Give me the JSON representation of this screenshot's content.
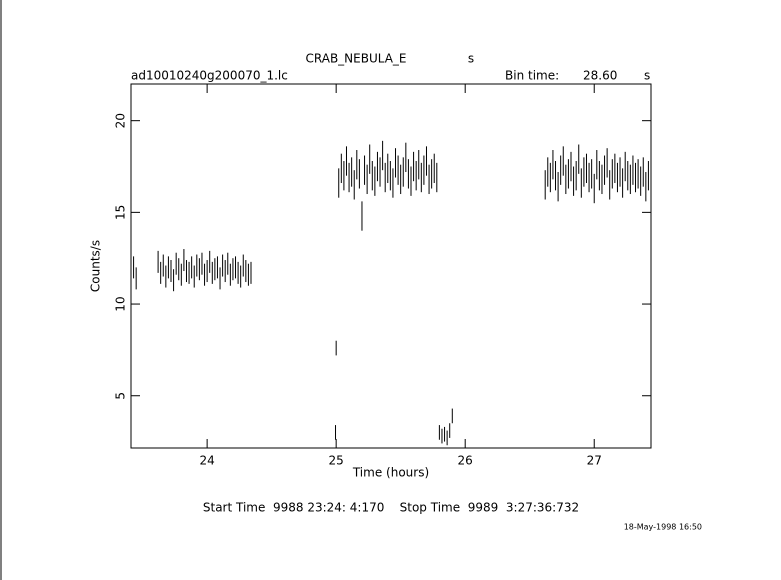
{
  "chart_data": {
    "type": "errorbar",
    "title": "CRAB_NEBULA_E",
    "title_suffix": "s",
    "file_name": "ad10010240g200070_1.lc",
    "bin_time_label": "Bin time:",
    "bin_time": "28.60",
    "bin_time_unit": "s",
    "xlabel": "Time (hours)",
    "ylabel": "Counts/s",
    "footer": "Start Time  9988 23:24: 4:170    Stop Time  9989  3:27:36:732",
    "date": "18-May-1998 16:50",
    "xlim": [
      23.41,
      27.44
    ],
    "ylim": [
      2.15,
      22
    ],
    "xticks": [
      24,
      25,
      26,
      27
    ],
    "yticks": [
      5,
      10,
      15,
      20
    ],
    "series": [
      {
        "color": "#000000",
        "error": 0.6,
        "x": [
          23.41,
          23.43,
          23.45
        ],
        "values": [
          11.6,
          12.0,
          11.4
        ]
      },
      {
        "color": "#000000",
        "error": 0.6,
        "x": [
          23.62,
          23.64,
          23.66,
          23.68,
          23.7,
          23.72,
          23.74,
          23.76,
          23.78,
          23.8,
          23.82,
          23.84,
          23.86,
          23.88,
          23.9,
          23.92,
          23.94,
          23.96,
          23.98,
          24.0,
          24.02,
          24.04,
          24.06,
          24.08,
          24.1,
          24.12,
          24.14,
          24.16,
          24.18,
          24.2,
          24.22,
          24.24,
          24.26,
          24.28,
          24.3,
          24.32,
          24.34
        ],
        "values": [
          12.3,
          11.7,
          12.1,
          11.5,
          12.0,
          11.8,
          11.3,
          12.2,
          11.9,
          11.6,
          12.4,
          11.8,
          11.7,
          12.0,
          11.5,
          12.1,
          11.9,
          12.2,
          11.6,
          11.8,
          12.3,
          11.7,
          11.9,
          12.0,
          11.4,
          12.1,
          11.8,
          12.2,
          11.6,
          11.9,
          12.0,
          11.7,
          11.5,
          12.1,
          11.8,
          11.6,
          11.7
        ]
      },
      {
        "color": "#000000",
        "error": 0.4,
        "x": [
          24.995,
          25.0
        ],
        "values": [
          3.0,
          7.6
        ]
      },
      {
        "color": "#000000",
        "error": 0.8,
        "x": [
          25.02,
          25.04,
          25.06,
          25.08,
          25.1,
          25.12,
          25.14,
          25.16,
          25.18,
          25.2,
          25.22,
          25.24,
          25.26,
          25.28,
          25.3,
          25.32,
          25.34,
          25.36,
          25.38,
          25.4,
          25.42,
          25.44,
          25.46,
          25.48,
          25.5,
          25.52,
          25.54,
          25.56,
          25.58,
          25.6,
          25.62,
          25.64,
          25.66,
          25.68,
          25.7,
          25.72,
          25.74,
          25.76,
          25.78
        ],
        "values": [
          16.6,
          17.4,
          17.0,
          17.8,
          16.9,
          17.2,
          16.5,
          17.6,
          17.1,
          14.8,
          17.3,
          16.8,
          17.9,
          17.0,
          16.7,
          17.5,
          17.2,
          18.1,
          16.9,
          17.4,
          17.0,
          16.6,
          17.7,
          17.3,
          16.8,
          17.2,
          18.0,
          17.1,
          16.7,
          17.5,
          17.0,
          17.6,
          16.9,
          17.3,
          17.8,
          16.8,
          17.1,
          17.4,
          16.9
        ]
      },
      {
        "color": "#000000",
        "error": 0.4,
        "x": [
          25.8,
          25.82,
          25.84,
          25.86,
          25.88,
          25.9
        ],
        "values": [
          3.0,
          2.8,
          2.9,
          2.7,
          3.1,
          3.9
        ]
      },
      {
        "color": "#000000",
        "error": 0.8,
        "x": [
          26.62,
          26.64,
          26.66,
          26.68,
          26.7,
          26.72,
          26.74,
          26.76,
          26.78,
          26.8,
          26.82,
          26.84,
          26.86,
          26.88,
          26.9,
          26.92,
          26.94,
          26.96,
          26.98,
          27.0,
          27.02,
          27.04,
          27.06,
          27.08,
          27.1,
          27.12,
          27.14,
          27.16,
          27.18,
          27.2,
          27.22,
          27.24,
          27.26,
          27.28,
          27.3,
          27.32,
          27.34,
          27.36,
          27.38,
          27.4,
          27.42,
          27.44
        ],
        "values": [
          16.5,
          17.2,
          16.9,
          17.6,
          17.0,
          16.4,
          17.3,
          17.8,
          16.8,
          17.1,
          17.5,
          16.7,
          17.0,
          17.9,
          16.6,
          17.2,
          17.4,
          16.9,
          17.1,
          16.3,
          17.6,
          17.0,
          16.8,
          17.3,
          17.7,
          16.5,
          17.1,
          17.4,
          16.9,
          17.2,
          16.6,
          17.5,
          17.0,
          16.8,
          17.3,
          16.9,
          17.1,
          16.7,
          17.2,
          16.4,
          17.0,
          16.1
        ]
      }
    ]
  }
}
